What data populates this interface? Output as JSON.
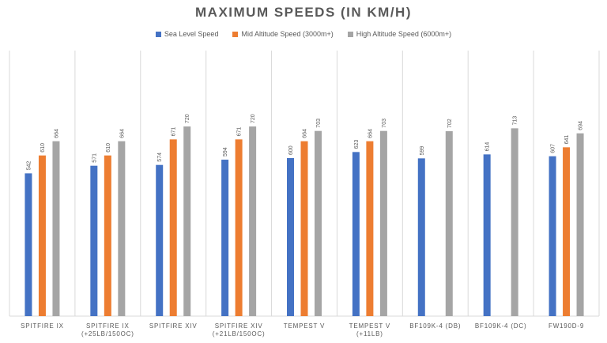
{
  "chart_data": {
    "type": "bar",
    "title": "MAXIMUM SPEEDS (IN KM/H)",
    "xlabel": "",
    "ylabel": "",
    "ylim": [
      0,
      800
    ],
    "grid": "vertical separators",
    "legend_position": "top",
    "categories": [
      [
        "SPITFIRE IX"
      ],
      [
        "SPITFIRE IX",
        "(+25LB/150OC)"
      ],
      [
        "SPITFIRE XIV"
      ],
      [
        "SPITFIRE XIV",
        "(+21LB/150OC)"
      ],
      [
        "TEMPEST V"
      ],
      [
        "TEMPEST V",
        "(+11LB)"
      ],
      [
        "BF109K-4 (DB)"
      ],
      [
        "BF109K-4 (DC)"
      ],
      [
        "FW190D-9"
      ]
    ],
    "series": [
      {
        "name": "Sea Level Speed",
        "color": "#4472C4",
        "values": [
          542,
          571,
          574,
          594,
          600,
          623,
          599,
          614,
          607
        ]
      },
      {
        "name": "Mid Altitude Speed (3000m+)",
        "color": "#ED7D31",
        "values": [
          610,
          610,
          671,
          671,
          664,
          664,
          null,
          null,
          641
        ]
      },
      {
        "name": "High Altitude Speed (6000m+)",
        "color": "#A5A5A5",
        "values": [
          664,
          664,
          720,
          720,
          703,
          703,
          702,
          713,
          694
        ]
      }
    ]
  }
}
